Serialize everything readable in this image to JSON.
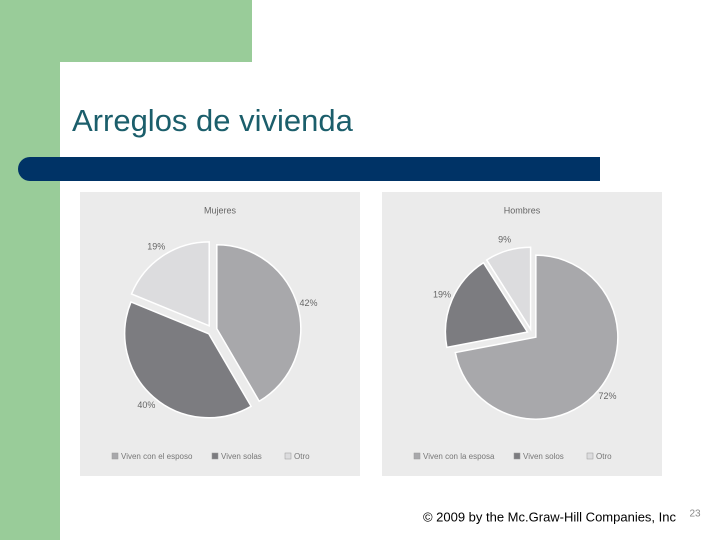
{
  "title": "Arreglos de vivienda",
  "footer": "© 2009 by the Mc.Graw-Hill Companies, Inc",
  "page_number": "23",
  "chart_data": [
    {
      "type": "pie",
      "title": "Mujeres",
      "categories": [
        "Viven con el esposo",
        "Viven solas",
        "Otro"
      ],
      "values": [
        42,
        40,
        19
      ],
      "value_labels": [
        "42%",
        "40%",
        "19%"
      ],
      "colors": [
        "#a8a8ab",
        "#7c7c80",
        "#dcdcde"
      ]
    },
    {
      "type": "pie",
      "title": "Hombres",
      "categories": [
        "Viven con la esposa",
        "Viven solos",
        "Otro"
      ],
      "values": [
        72,
        19,
        9
      ],
      "value_labels": [
        "72%",
        "19%",
        "9%"
      ],
      "colors": [
        "#a8a8ab",
        "#7c7c80",
        "#dcdcde"
      ]
    }
  ]
}
